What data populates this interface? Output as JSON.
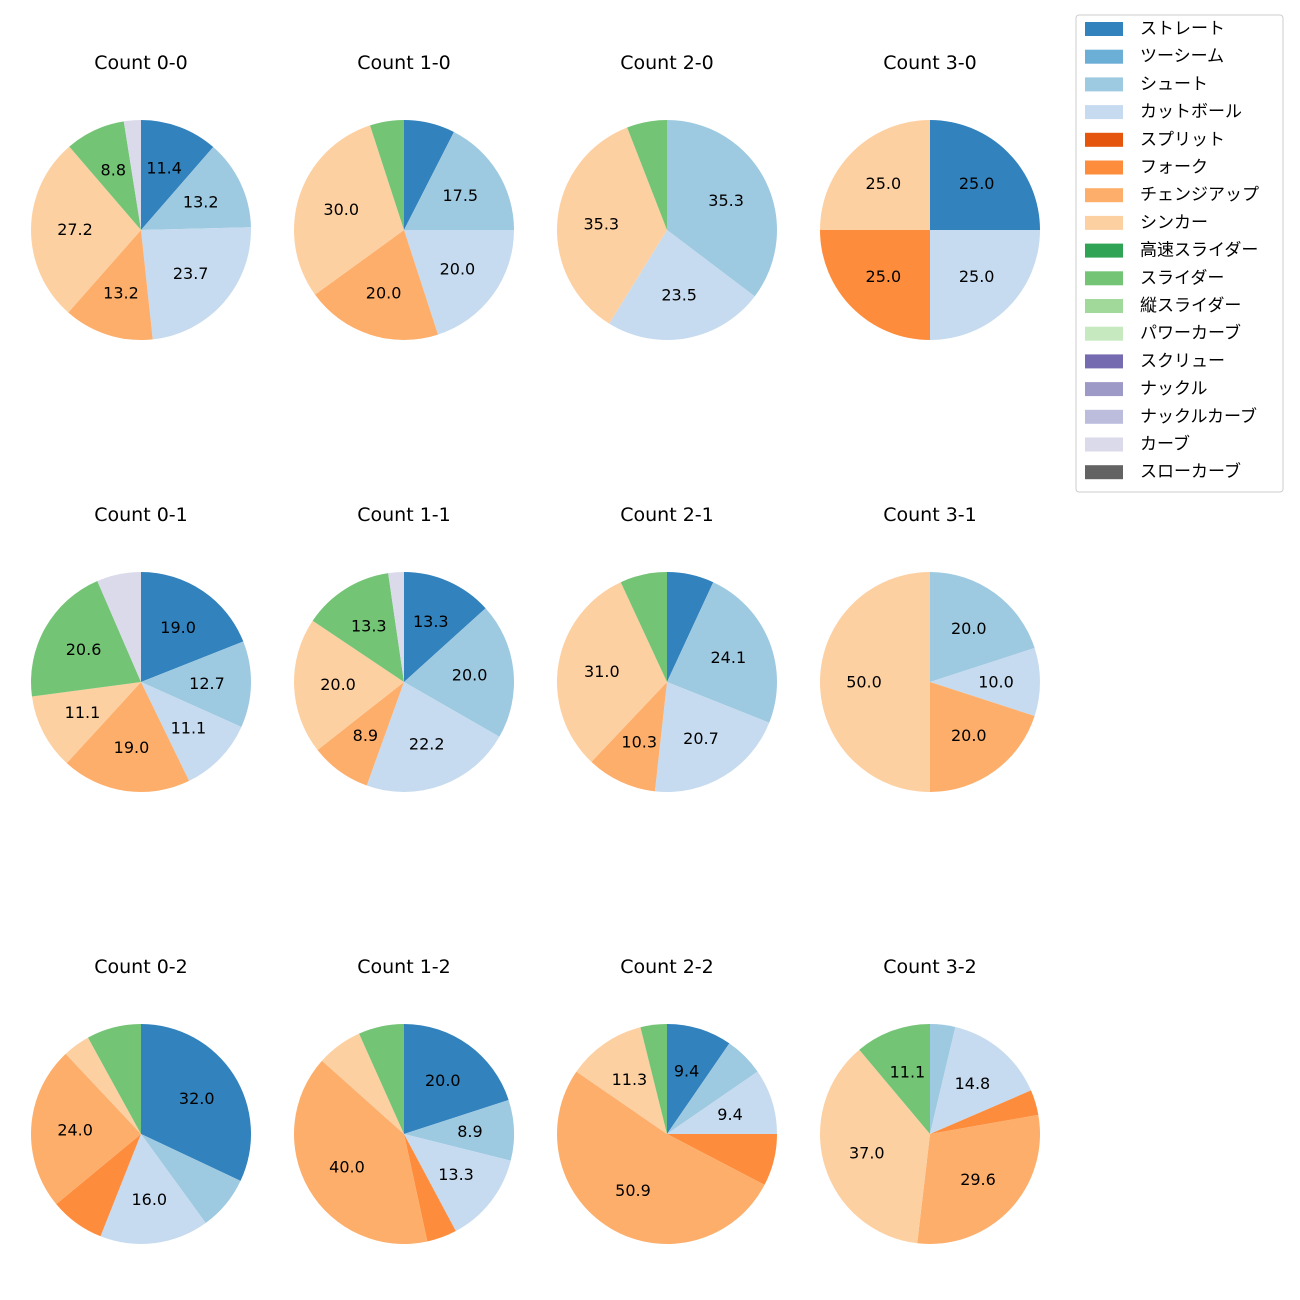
{
  "chart_data": {
    "type": "pie",
    "legend": {
      "placement": "top-right",
      "entries": [
        {
          "name": "ストレート",
          "color": "#3182bd"
        },
        {
          "name": "ツーシーム",
          "color": "#6baed6"
        },
        {
          "name": "シュート",
          "color": "#9ecae1"
        },
        {
          "name": "カットボール",
          "color": "#c6dbef"
        },
        {
          "name": "スプリット",
          "color": "#e6550d"
        },
        {
          "name": "フォーク",
          "color": "#fd8d3c"
        },
        {
          "name": "チェンジアップ",
          "color": "#fdae6b"
        },
        {
          "name": "シンカー",
          "color": "#fdd0a2"
        },
        {
          "name": "高速スライダー",
          "color": "#31a354"
        },
        {
          "name": "スライダー",
          "color": "#74c476"
        },
        {
          "name": "縦スライダー",
          "color": "#a1d99b"
        },
        {
          "name": "パワーカーブ",
          "color": "#c7e9c0"
        },
        {
          "name": "スクリュー",
          "color": "#756bb1"
        },
        {
          "name": "ナックル",
          "color": "#9e9ac8"
        },
        {
          "name": "ナックルカーブ",
          "color": "#bcbddc"
        },
        {
          "name": "カーブ",
          "color": "#dadaeb"
        },
        {
          "name": "スローカーブ",
          "color": "#636363"
        }
      ]
    },
    "pies": [
      {
        "title": "Count 0-0",
        "slices": [
          {
            "name": "ストレート",
            "value": 11.4,
            "label": "11.4"
          },
          {
            "name": "シュート",
            "value": 13.2,
            "label": "13.2"
          },
          {
            "name": "カットボール",
            "value": 23.7,
            "label": "23.7"
          },
          {
            "name": "チェンジアップ",
            "value": 13.2,
            "label": "13.2"
          },
          {
            "name": "シンカー",
            "value": 27.2,
            "label": "27.2"
          },
          {
            "name": "スライダー",
            "value": 8.8,
            "label": "8.8"
          },
          {
            "name": "カーブ",
            "value": 2.5,
            "label": ""
          }
        ]
      },
      {
        "title": "Count 1-0",
        "slices": [
          {
            "name": "ストレート",
            "value": 7.5,
            "label": ""
          },
          {
            "name": "シュート",
            "value": 17.5,
            "label": "17.5"
          },
          {
            "name": "カットボール",
            "value": 20.0,
            "label": "20.0"
          },
          {
            "name": "チェンジアップ",
            "value": 20.0,
            "label": "20.0"
          },
          {
            "name": "シンカー",
            "value": 30.0,
            "label": "30.0"
          },
          {
            "name": "スライダー",
            "value": 5.0,
            "label": ""
          }
        ]
      },
      {
        "title": "Count 2-0",
        "slices": [
          {
            "name": "シュート",
            "value": 35.3,
            "label": "35.3"
          },
          {
            "name": "カットボール",
            "value": 23.5,
            "label": "23.5"
          },
          {
            "name": "シンカー",
            "value": 35.3,
            "label": "35.3"
          },
          {
            "name": "スライダー",
            "value": 5.9,
            "label": ""
          }
        ]
      },
      {
        "title": "Count 3-0",
        "slices": [
          {
            "name": "ストレート",
            "value": 25.0,
            "label": "25.0"
          },
          {
            "name": "カットボール",
            "value": 25.0,
            "label": "25.0"
          },
          {
            "name": "フォーク",
            "value": 25.0,
            "label": "25.0"
          },
          {
            "name": "シンカー",
            "value": 25.0,
            "label": "25.0"
          }
        ]
      },
      {
        "title": "Count 0-1",
        "slices": [
          {
            "name": "ストレート",
            "value": 19.0,
            "label": "19.0"
          },
          {
            "name": "シュート",
            "value": 12.7,
            "label": "12.7"
          },
          {
            "name": "カットボール",
            "value": 11.1,
            "label": "11.1"
          },
          {
            "name": "チェンジアップ",
            "value": 19.0,
            "label": "19.0"
          },
          {
            "name": "シンカー",
            "value": 11.1,
            "label": "11.1"
          },
          {
            "name": "スライダー",
            "value": 20.6,
            "label": "20.6"
          },
          {
            "name": "カーブ",
            "value": 6.5,
            "label": ""
          }
        ]
      },
      {
        "title": "Count 1-1",
        "slices": [
          {
            "name": "ストレート",
            "value": 13.3,
            "label": "13.3"
          },
          {
            "name": "シュート",
            "value": 20.0,
            "label": "20.0"
          },
          {
            "name": "カットボール",
            "value": 22.2,
            "label": "22.2"
          },
          {
            "name": "チェンジアップ",
            "value": 8.9,
            "label": "8.9"
          },
          {
            "name": "シンカー",
            "value": 20.0,
            "label": "20.0"
          },
          {
            "name": "スライダー",
            "value": 13.3,
            "label": "13.3"
          },
          {
            "name": "カーブ",
            "value": 2.3,
            "label": ""
          }
        ]
      },
      {
        "title": "Count 2-1",
        "slices": [
          {
            "name": "ストレート",
            "value": 6.9,
            "label": ""
          },
          {
            "name": "シュート",
            "value": 24.1,
            "label": "24.1"
          },
          {
            "name": "カットボール",
            "value": 20.7,
            "label": "20.7"
          },
          {
            "name": "チェンジアップ",
            "value": 10.3,
            "label": "10.3"
          },
          {
            "name": "シンカー",
            "value": 31.0,
            "label": "31.0"
          },
          {
            "name": "スライダー",
            "value": 6.9,
            "label": ""
          }
        ]
      },
      {
        "title": "Count 3-1",
        "slices": [
          {
            "name": "シュート",
            "value": 20.0,
            "label": "20.0"
          },
          {
            "name": "カットボール",
            "value": 10.0,
            "label": "10.0"
          },
          {
            "name": "チェンジアップ",
            "value": 20.0,
            "label": "20.0"
          },
          {
            "name": "シンカー",
            "value": 50.0,
            "label": "50.0"
          }
        ]
      },
      {
        "title": "Count 0-2",
        "slices": [
          {
            "name": "ストレート",
            "value": 32.0,
            "label": "32.0"
          },
          {
            "name": "シュート",
            "value": 8.0,
            "label": ""
          },
          {
            "name": "カットボール",
            "value": 16.0,
            "label": "16.0"
          },
          {
            "name": "フォーク",
            "value": 8.0,
            "label": ""
          },
          {
            "name": "チェンジアップ",
            "value": 24.0,
            "label": "24.0"
          },
          {
            "name": "シンカー",
            "value": 4.0,
            "label": ""
          },
          {
            "name": "スライダー",
            "value": 8.0,
            "label": ""
          }
        ]
      },
      {
        "title": "Count 1-2",
        "slices": [
          {
            "name": "ストレート",
            "value": 20.0,
            "label": "20.0"
          },
          {
            "name": "シュート",
            "value": 8.9,
            "label": "8.9"
          },
          {
            "name": "カットボール",
            "value": 13.3,
            "label": "13.3"
          },
          {
            "name": "フォーク",
            "value": 4.4,
            "label": ""
          },
          {
            "name": "チェンジアップ",
            "value": 40.0,
            "label": "40.0"
          },
          {
            "name": "シンカー",
            "value": 6.7,
            "label": ""
          },
          {
            "name": "スライダー",
            "value": 6.7,
            "label": ""
          }
        ]
      },
      {
        "title": "Count 2-2",
        "slices": [
          {
            "name": "ストレート",
            "value": 9.4,
            "label": "9.4"
          },
          {
            "name": "シュート",
            "value": 5.7,
            "label": ""
          },
          {
            "name": "カットボール",
            "value": 9.4,
            "label": "9.4"
          },
          {
            "name": "フォーク",
            "value": 7.5,
            "label": ""
          },
          {
            "name": "チェンジアップ",
            "value": 50.9,
            "label": "50.9"
          },
          {
            "name": "シンカー",
            "value": 11.3,
            "label": "11.3"
          },
          {
            "name": "スライダー",
            "value": 3.8,
            "label": ""
          }
        ]
      },
      {
        "title": "Count 3-2",
        "slices": [
          {
            "name": "シュート",
            "value": 3.7,
            "label": ""
          },
          {
            "name": "カットボール",
            "value": 14.8,
            "label": "14.8"
          },
          {
            "name": "フォーク",
            "value": 3.7,
            "label": ""
          },
          {
            "name": "チェンジアップ",
            "value": 29.6,
            "label": "29.6"
          },
          {
            "name": "シンカー",
            "value": 37.0,
            "label": "37.0"
          },
          {
            "name": "スライダー",
            "value": 11.1,
            "label": "11.1"
          }
        ]
      }
    ]
  }
}
